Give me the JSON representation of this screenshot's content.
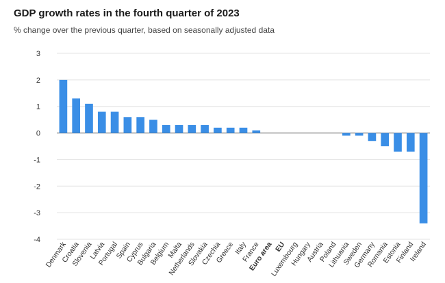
{
  "title": "GDP growth rates in the fourth quarter of 2023",
  "subtitle": "% change over the previous quarter, based on seasonally adjusted data",
  "colors": {
    "bar": "#3a8ee6",
    "grid": "#e3e3e3"
  },
  "chart_data": {
    "type": "bar",
    "title": "GDP growth rates in the fourth quarter of 2023",
    "subtitle": "% change over the previous quarter, based on seasonally adjusted data",
    "xlabel": "",
    "ylabel": "",
    "ylim": [
      -4,
      3
    ],
    "yticks": [
      3,
      2,
      1,
      0,
      -1,
      -2,
      -3,
      -4
    ],
    "grid": true,
    "categories": [
      "Denmark",
      "Croatia",
      "Slovenia",
      "Latvia",
      "Portugal",
      "Spain",
      "Cyprus",
      "Bulgaria",
      "Belgium",
      "Malta",
      "Netherlands",
      "Slovakia",
      "Czechia",
      "Greece",
      "Italy",
      "France",
      "Euro area",
      "EU",
      "Luxembourg",
      "Hungary",
      "Austria",
      "Poland",
      "Lithuania",
      "Sweden",
      "Germany",
      "Romania",
      "Estonia",
      "Finland",
      "Ireland"
    ],
    "bold_categories": [
      "Euro area",
      "EU"
    ],
    "values": [
      2.0,
      1.3,
      1.1,
      0.8,
      0.8,
      0.6,
      0.6,
      0.5,
      0.3,
      0.3,
      0.3,
      0.3,
      0.2,
      0.2,
      0.2,
      0.1,
      0.0,
      0.0,
      0.0,
      0.0,
      0.0,
      0.0,
      -0.1,
      -0.1,
      -0.3,
      -0.5,
      -0.7,
      -0.7,
      -3.4
    ]
  }
}
